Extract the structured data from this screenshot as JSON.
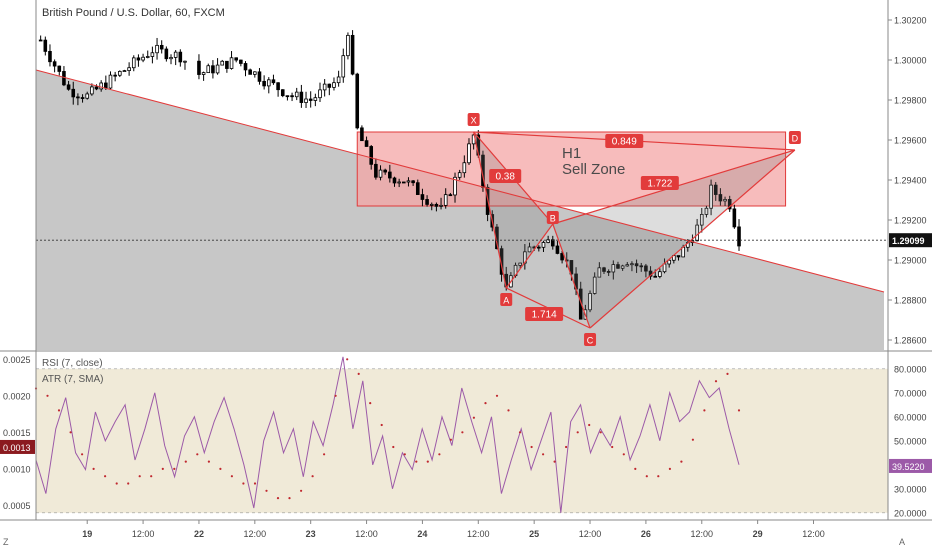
{
  "header": {
    "symbol": "British Pound / U.S. Dollar, 60, FXCM"
  },
  "annotation": {
    "zone_line1": "H1",
    "zone_line2": "Sell Zone"
  },
  "pattern": {
    "points": [
      "X",
      "A",
      "B",
      "C",
      "D"
    ],
    "ratios": [
      "0.38",
      "1.714",
      "1.722",
      "0.849"
    ]
  },
  "price_axis": {
    "ticks": [
      "1.30200",
      "1.30000",
      "1.29800",
      "1.29600",
      "1.29400",
      "1.29200",
      "1.29000",
      "1.28800",
      "1.28600"
    ],
    "current": "1.29099"
  },
  "indicator": {
    "rsi_label": "RSI (7, close)",
    "atr_label": "ATR (7, SMA)",
    "left_ticks": [
      "0.0025",
      "0.0020",
      "0.0015",
      "0.0010",
      "0.0005"
    ],
    "atr_current": "0.0013",
    "right_ticks": [
      "80.0000",
      "70.0000",
      "60.0000",
      "50.0000",
      "40.0000",
      "30.0000",
      "20.0000"
    ],
    "rsi_current": "39.5220"
  },
  "time_axis": {
    "ticks": [
      "19",
      "12:00",
      "22",
      "12:00",
      "23",
      "12:00",
      "24",
      "12:00",
      "25",
      "12:00",
      "26",
      "12:00",
      "29",
      "12:00"
    ],
    "bold": [
      "19",
      "22",
      "23",
      "24",
      "25",
      "26",
      "29"
    ]
  },
  "corner_labels": {
    "bottom_left": "Z",
    "bottom_right": "A"
  },
  "colors": {
    "zone_fill": "#f4a6a6",
    "zone_stroke": "#e03a3a",
    "pattern_red": "#e23b3b",
    "shade": "#bdbdbd",
    "candle_up": "#ffffff",
    "candle_down": "#000000",
    "rsi_line": "#9c5aa8",
    "atr_dots": "#c0282f",
    "rsi_band": "#f0ead8"
  },
  "chart_data": [
    {
      "type": "candlestick",
      "title": "British Pound / U.S. Dollar, 60, FXCM",
      "ylim": [
        1.2855,
        1.303
      ],
      "close_path": [
        {
          "x": "18 14:00",
          "y": 1.301
        },
        {
          "x": "18 20:00",
          "y": 1.2985
        },
        {
          "x": "19 00:00",
          "y": 1.2982
        },
        {
          "x": "19 08:00",
          "y": 1.2995
        },
        {
          "x": "19 14:00",
          "y": 1.3005
        },
        {
          "x": "19 20:00",
          "y": 1.3002
        },
        {
          "x": "22 00:00",
          "y": 1.2993
        },
        {
          "x": "22 08:00",
          "y": 1.3
        },
        {
          "x": "22 14:00",
          "y": 1.299
        },
        {
          "x": "22 20:00",
          "y": 1.2982
        },
        {
          "x": "23 00:00",
          "y": 1.298
        },
        {
          "x": "23 06:00",
          "y": 1.299
        },
        {
          "x": "23 08:00",
          "y": 1.3015
        },
        {
          "x": "23 10:00",
          "y": 1.2965
        },
        {
          "x": "23 14:00",
          "y": 1.2943
        },
        {
          "x": "23 20:00",
          "y": 1.294
        },
        {
          "x": "24 04:00",
          "y": 1.2925
        },
        {
          "x": "24 08:00",
          "y": 1.2945
        },
        {
          "x": "24 11:00",
          "y": 1.2962
        },
        {
          "x": "24 14:00",
          "y": 1.2925
        },
        {
          "x": "24 18:00",
          "y": 1.2885
        },
        {
          "x": "24 22:00",
          "y": 1.2905
        },
        {
          "x": "25 04:00",
          "y": 1.291
        },
        {
          "x": "25 08:00",
          "y": 1.2895
        },
        {
          "x": "25 10:00",
          "y": 1.287
        },
        {
          "x": "25 14:00",
          "y": 1.2895
        },
        {
          "x": "25 20:00",
          "y": 1.29
        },
        {
          "x": "26 02:00",
          "y": 1.2892
        },
        {
          "x": "26 08:00",
          "y": 1.2905
        },
        {
          "x": "26 12:00",
          "y": 1.292
        },
        {
          "x": "26 14:00",
          "y": 1.2935
        },
        {
          "x": "26 18:00",
          "y": 1.2928
        },
        {
          "x": "26 20:00",
          "y": 1.291
        }
      ],
      "harmonic_pattern": [
        {
          "label": "X",
          "y": 1.2964
        },
        {
          "label": "A",
          "y": 1.2886
        },
        {
          "label": "B",
          "y": 1.2918
        },
        {
          "label": "C",
          "y": 1.2866
        },
        {
          "label": "D",
          "y": 1.2955
        }
      ],
      "sell_zone": [
        1.2927,
        1.2964
      ]
    },
    {
      "type": "line",
      "series": [
        {
          "name": "RSI (7, close)",
          "values": [
            42,
            28,
            55,
            68,
            45,
            38,
            62,
            50,
            58,
            65,
            42,
            55,
            70,
            48,
            35,
            52,
            60,
            45,
            58,
            68,
            55,
            40,
            22,
            50,
            62,
            45,
            55,
            35,
            58,
            48,
            65,
            85,
            55,
            75,
            40,
            52,
            30,
            45,
            38,
            55,
            42,
            60,
            48,
            72,
            58,
            45,
            60,
            28,
            42,
            55,
            38,
            50,
            62,
            20,
            58,
            65,
            45,
            55,
            48,
            60,
            42,
            52,
            65,
            50,
            70,
            58,
            62,
            75,
            68,
            72,
            55,
            40
          ]
        },
        {
          "name": "ATR (7, SMA)",
          "values": [
            0.0021,
            0.002,
            0.0018,
            0.0015,
            0.0012,
            0.001,
            0.0009,
            0.0008,
            0.0008,
            0.0009,
            0.0009,
            0.001,
            0.001,
            0.0011,
            0.0012,
            0.0011,
            0.001,
            0.0009,
            0.0008,
            0.0008,
            0.0007,
            0.0006,
            0.0006,
            0.0007,
            0.0009,
            0.0012,
            0.002,
            0.0025,
            0.0023,
            0.0019,
            0.0016,
            0.0013,
            0.0012,
            0.0011,
            0.0011,
            0.0012,
            0.0014,
            0.0015,
            0.0017,
            0.0019,
            0.002,
            0.0018,
            0.0015,
            0.0013,
            0.0012,
            0.0011,
            0.0013,
            0.0015,
            0.0016,
            0.0015,
            0.0013,
            0.0012,
            0.001,
            0.0009,
            0.0009,
            0.001,
            0.0011,
            0.0014,
            0.0018,
            0.0022,
            0.0023,
            0.0018
          ]
        }
      ],
      "ylim_left": [
        0.0003,
        0.0026
      ],
      "ylim_right": [
        17,
        87
      ],
      "band": [
        20,
        80
      ]
    }
  ]
}
